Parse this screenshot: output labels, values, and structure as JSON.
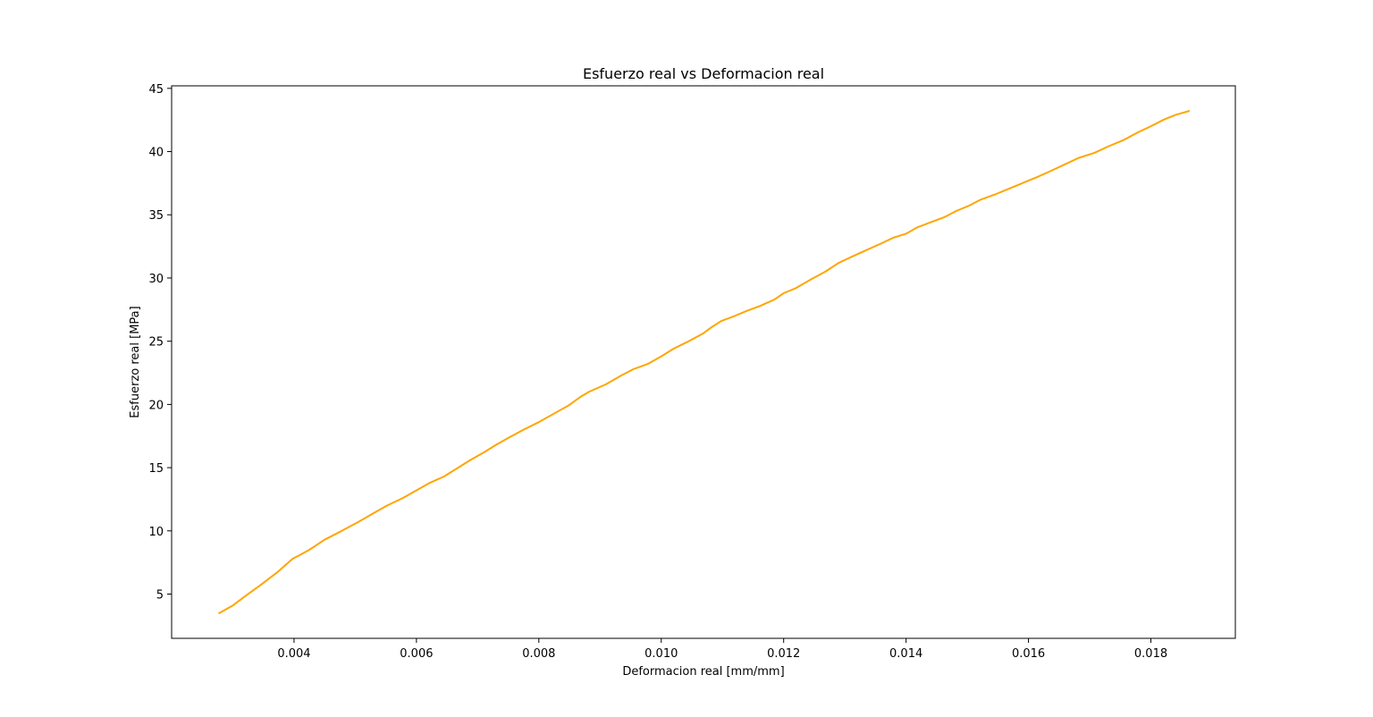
{
  "chart_data": {
    "type": "line",
    "title": "Esfuerzo real vs Deformacion real",
    "xlabel": "Deformacion real [mm/mm]",
    "ylabel": "Esfuerzo real [MPa]",
    "xlim": [
      0.002,
      0.01938
    ],
    "ylim": [
      1.5,
      45.2
    ],
    "xticks": [
      0.004,
      0.006,
      0.008,
      0.01,
      0.012,
      0.014,
      0.016,
      0.018
    ],
    "xtick_labels": [
      "0.004",
      "0.006",
      "0.008",
      "0.010",
      "0.012",
      "0.014",
      "0.016",
      "0.018"
    ],
    "yticks": [
      5,
      10,
      15,
      20,
      25,
      30,
      35,
      40,
      45
    ],
    "ytick_labels": [
      "5",
      "10",
      "15",
      "20",
      "25",
      "30",
      "35",
      "40",
      "45"
    ],
    "grid": false,
    "legend": false,
    "series": [
      {
        "color": "#FFA500",
        "x": [
          0.00278,
          0.003,
          0.00322,
          0.00345,
          0.00372,
          0.00398,
          0.0041,
          0.00425,
          0.0045,
          0.00478,
          0.00505,
          0.0053,
          0.00552,
          0.00578,
          0.006,
          0.00622,
          0.00645,
          0.00665,
          0.00688,
          0.0071,
          0.0073,
          0.00752,
          0.00775,
          0.008,
          0.00822,
          0.00848,
          0.00868,
          0.00882,
          0.0091,
          0.00935,
          0.00955,
          0.00978,
          0.01,
          0.0102,
          0.01045,
          0.01068,
          0.01082,
          0.01098,
          0.0112,
          0.0114,
          0.01162,
          0.01185,
          0.012,
          0.0122,
          0.01245,
          0.01268,
          0.0129,
          0.01312,
          0.01335,
          0.01358,
          0.0138,
          0.014,
          0.01418,
          0.0144,
          0.01462,
          0.01482,
          0.01502,
          0.01522,
          0.01545,
          0.0157,
          0.01595,
          0.01615,
          0.01638,
          0.0166,
          0.01682,
          0.01708,
          0.0173,
          0.01755,
          0.01778,
          0.018,
          0.0182,
          0.0184,
          0.01862
        ],
        "y": [
          3.5,
          4.1,
          4.9,
          5.7,
          6.7,
          7.8,
          8.1,
          8.5,
          9.3,
          10.0,
          10.7,
          11.4,
          12.0,
          12.6,
          13.2,
          13.8,
          14.3,
          14.9,
          15.6,
          16.2,
          16.8,
          17.4,
          18.0,
          18.6,
          19.2,
          19.9,
          20.6,
          21.0,
          21.6,
          22.3,
          22.8,
          23.2,
          23.8,
          24.4,
          25.0,
          25.6,
          26.1,
          26.6,
          27.0,
          27.4,
          27.8,
          28.3,
          28.8,
          29.2,
          29.9,
          30.5,
          31.2,
          31.7,
          32.2,
          32.7,
          33.2,
          33.5,
          34.0,
          34.4,
          34.8,
          35.3,
          35.7,
          36.2,
          36.6,
          37.1,
          37.6,
          38.0,
          38.5,
          39.0,
          39.5,
          39.9,
          40.4,
          40.9,
          41.5,
          42.0,
          42.5,
          42.9,
          43.2
        ]
      }
    ]
  }
}
